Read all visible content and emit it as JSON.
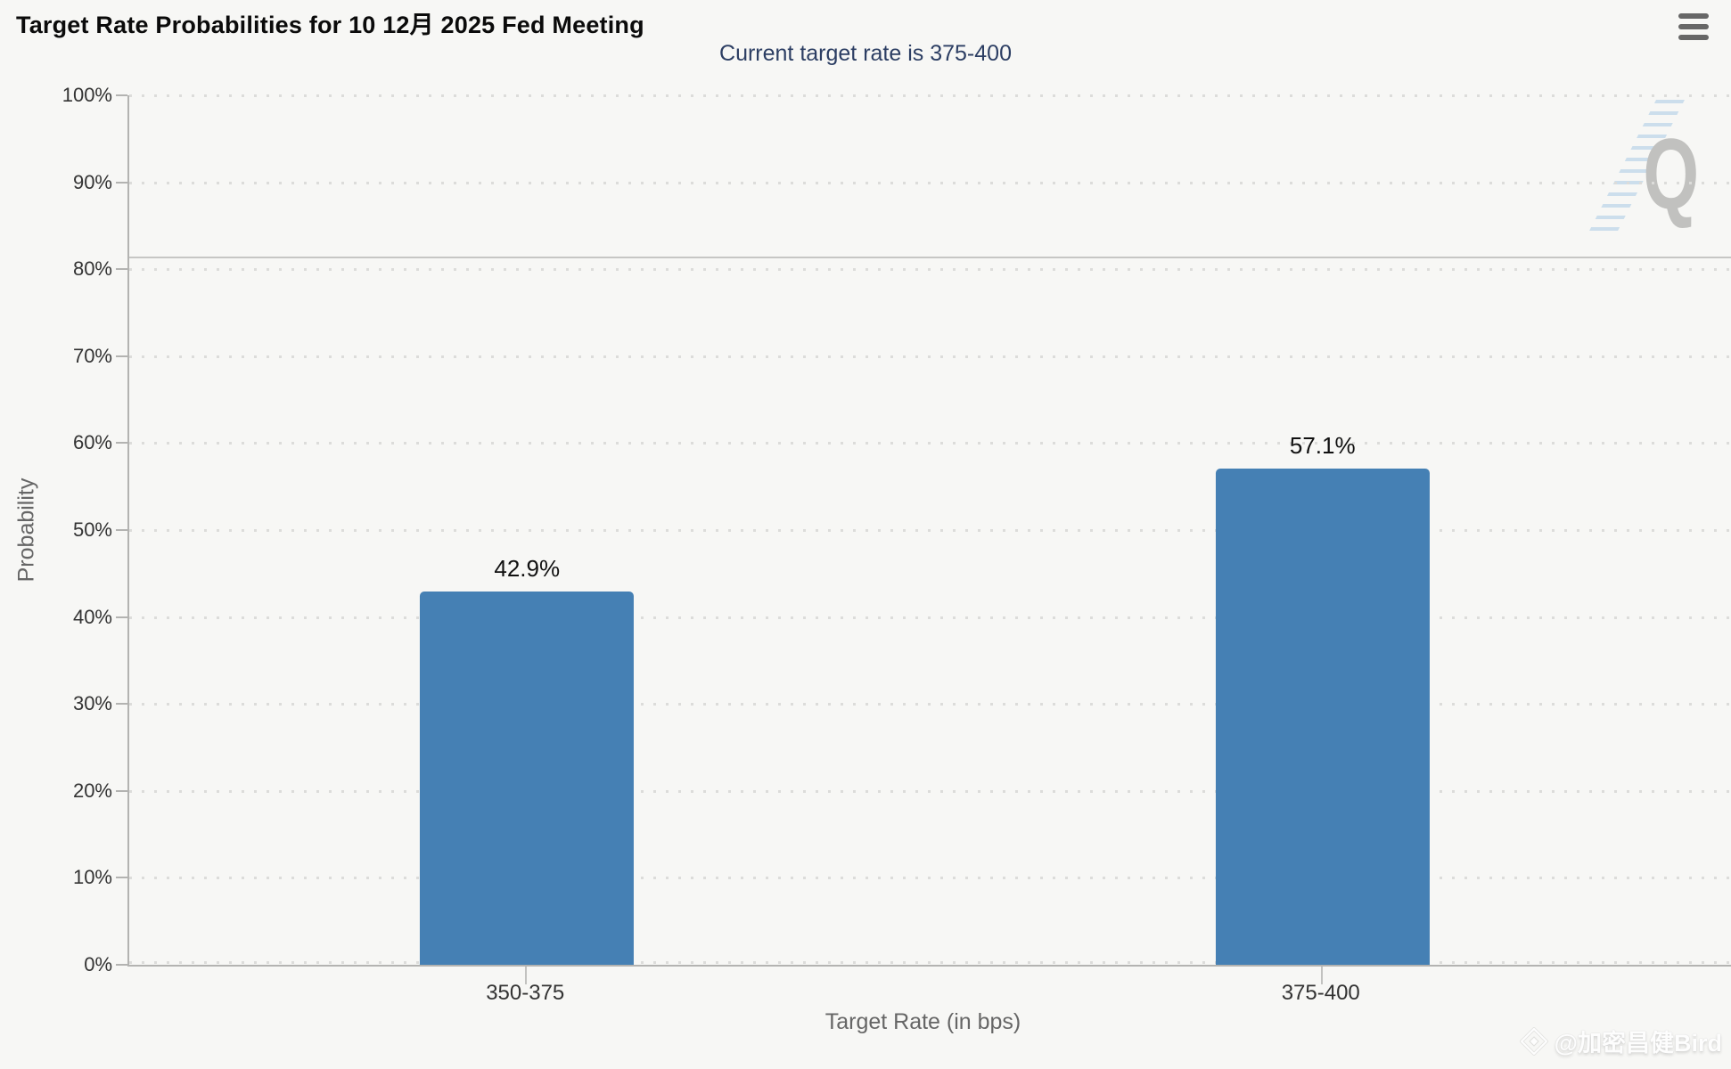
{
  "chart_data": {
    "type": "bar",
    "title": "Target Rate Probabilities for 10 12月 2025 Fed Meeting",
    "subtitle": "Current target rate is 375-400",
    "categories": [
      "350-375",
      "375-400"
    ],
    "values": [
      42.9,
      57.1
    ],
    "data_labels": [
      "42.9%",
      "57.1%"
    ],
    "xlabel": "Target Rate (in bps)",
    "ylabel": "Probability",
    "ylim": [
      0,
      100
    ],
    "ytick_step": 10,
    "ytick_suffix": "%",
    "grid": "dotted-horizontal",
    "legend": "none",
    "bar_color": "#4580b4",
    "ref_line_y": 81.5
  },
  "watermark": {
    "logo_letter": "Q",
    "credit": "@加密昌健Bird"
  }
}
